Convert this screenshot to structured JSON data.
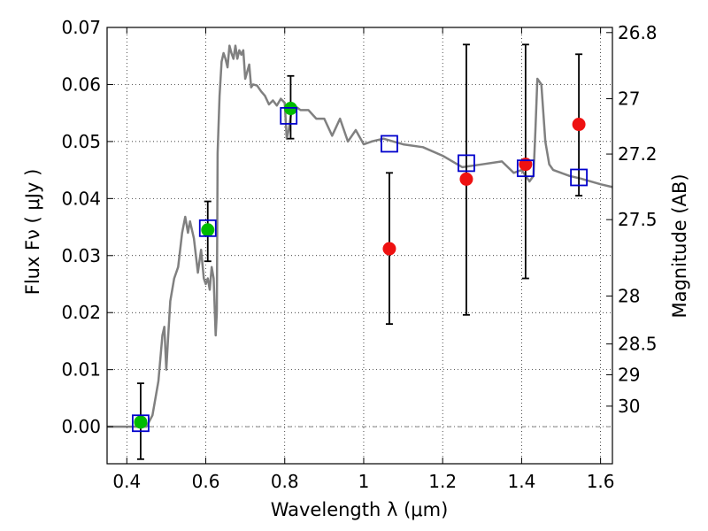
{
  "chart_data": {
    "type": "scatter",
    "xlabel": "Wavelength  λ (μm)",
    "ylabel_left": "Flux  Fν  ( μJy )",
    "ylabel_right": "Magnitude (AB)",
    "xlim": [
      0.35,
      1.63
    ],
    "ylim": [
      -0.0065,
      0.07
    ],
    "x_ticks": [
      0.4,
      0.6,
      0.8,
      1.0,
      1.2,
      1.4,
      1.6
    ],
    "x_tick_labels": [
      "0.4",
      "0.6",
      "0.8",
      "1",
      "1.2",
      "1.4",
      "1.6"
    ],
    "y_ticks": [
      0.0,
      0.01,
      0.02,
      0.03,
      0.04,
      0.05,
      0.06,
      0.07
    ],
    "y_tick_labels": [
      "0.00",
      "0.01",
      "0.02",
      "0.03",
      "0.04",
      "0.05",
      "0.06",
      "0.07"
    ],
    "mag_ticks": [
      {
        "label": "26.8",
        "flux": 0.0691
      },
      {
        "label": "27",
        "flux": 0.0575
      },
      {
        "label": "27.2",
        "flux": 0.0478
      },
      {
        "label": "27.5",
        "flux": 0.0363
      },
      {
        "label": "28",
        "flux": 0.0229
      },
      {
        "label": "28.5",
        "flux": 0.0145
      },
      {
        "label": "29",
        "flux": 0.0091
      },
      {
        "label": "30",
        "flux": 0.0036
      }
    ],
    "grid": true,
    "colors": {
      "model": "#808080",
      "detected": "#00bb00",
      "nondetected": "#ee1111",
      "model_flux": "#0000cc",
      "errorbar": "#000000"
    },
    "series": [
      {
        "name": "",
        "kind": "line",
        "x": [
          0.35,
          0.43,
          0.45,
          0.465,
          0.48,
          0.49,
          0.495,
          0.5,
          0.505,
          0.51,
          0.52,
          0.53,
          0.54,
          0.548,
          0.555,
          0.56,
          0.57,
          0.58,
          0.588,
          0.595,
          0.6,
          0.605,
          0.61,
          0.615,
          0.62,
          0.625,
          0.628,
          0.63,
          0.635,
          0.64,
          0.645,
          0.65,
          0.655,
          0.66,
          0.665,
          0.67,
          0.675,
          0.68,
          0.685,
          0.69,
          0.695,
          0.7,
          0.71,
          0.715,
          0.72,
          0.73,
          0.74,
          0.75,
          0.76,
          0.77,
          0.78,
          0.79,
          0.8,
          0.805,
          0.81,
          0.82,
          0.84,
          0.86,
          0.88,
          0.9,
          0.92,
          0.94,
          0.96,
          0.98,
          1.0,
          1.02,
          1.05,
          1.1,
          1.15,
          1.2,
          1.25,
          1.3,
          1.35,
          1.38,
          1.4,
          1.42,
          1.43,
          1.435,
          1.44,
          1.45,
          1.46,
          1.47,
          1.48,
          1.5,
          1.52,
          1.55,
          1.6,
          1.63
        ],
        "y": [
          0.0,
          0.0,
          0.0,
          0.002,
          0.008,
          0.016,
          0.0175,
          0.01,
          0.016,
          0.022,
          0.026,
          0.028,
          0.034,
          0.0368,
          0.034,
          0.036,
          0.033,
          0.027,
          0.031,
          0.026,
          0.025,
          0.026,
          0.024,
          0.028,
          0.026,
          0.016,
          0.02,
          0.048,
          0.058,
          0.064,
          0.0655,
          0.0645,
          0.063,
          0.0668,
          0.0655,
          0.0645,
          0.0668,
          0.0645,
          0.066,
          0.0652,
          0.066,
          0.061,
          0.0635,
          0.0595,
          0.06,
          0.0598,
          0.0588,
          0.058,
          0.0565,
          0.0572,
          0.0563,
          0.0575,
          0.0568,
          0.0505,
          0.052,
          0.0565,
          0.0555,
          0.0555,
          0.054,
          0.054,
          0.051,
          0.054,
          0.05,
          0.052,
          0.0495,
          0.05,
          0.0505,
          0.0495,
          0.049,
          0.0475,
          0.0455,
          0.046,
          0.0465,
          0.0445,
          0.045,
          0.043,
          0.044,
          0.052,
          0.061,
          0.06,
          0.05,
          0.046,
          0.045,
          0.0445,
          0.044,
          0.0435,
          0.0425,
          0.042
        ]
      },
      {
        "name": "",
        "kind": "points_errorbars",
        "marker": "circle",
        "color": "#00bb00",
        "x": [
          0.435,
          0.605,
          0.815
        ],
        "y": [
          0.0008,
          0.0345,
          0.0558
        ],
        "yerr_low": [
          0.0065,
          0.0055,
          0.0053
        ],
        "yerr_high": [
          0.0068,
          0.005,
          0.0057
        ]
      },
      {
        "name": "",
        "kind": "points_errorbars",
        "marker": "circle",
        "color": "#ee1111",
        "x": [
          1.065,
          1.26,
          1.41,
          1.545
        ],
        "y": [
          0.0312,
          0.0434,
          0.046,
          0.053
        ],
        "yerr_low": [
          0.0132,
          0.0238,
          0.02,
          0.0125
        ],
        "yerr_high": [
          0.0133,
          0.0236,
          0.021,
          0.0123
        ]
      },
      {
        "name": "",
        "kind": "points",
        "marker": "open-square",
        "color": "#0000cc",
        "x": [
          0.435,
          0.605,
          0.81,
          1.065,
          1.26,
          1.41,
          1.545
        ],
        "y": [
          0.0006,
          0.0348,
          0.0545,
          0.0496,
          0.0462,
          0.0453,
          0.0437
        ]
      }
    ]
  }
}
